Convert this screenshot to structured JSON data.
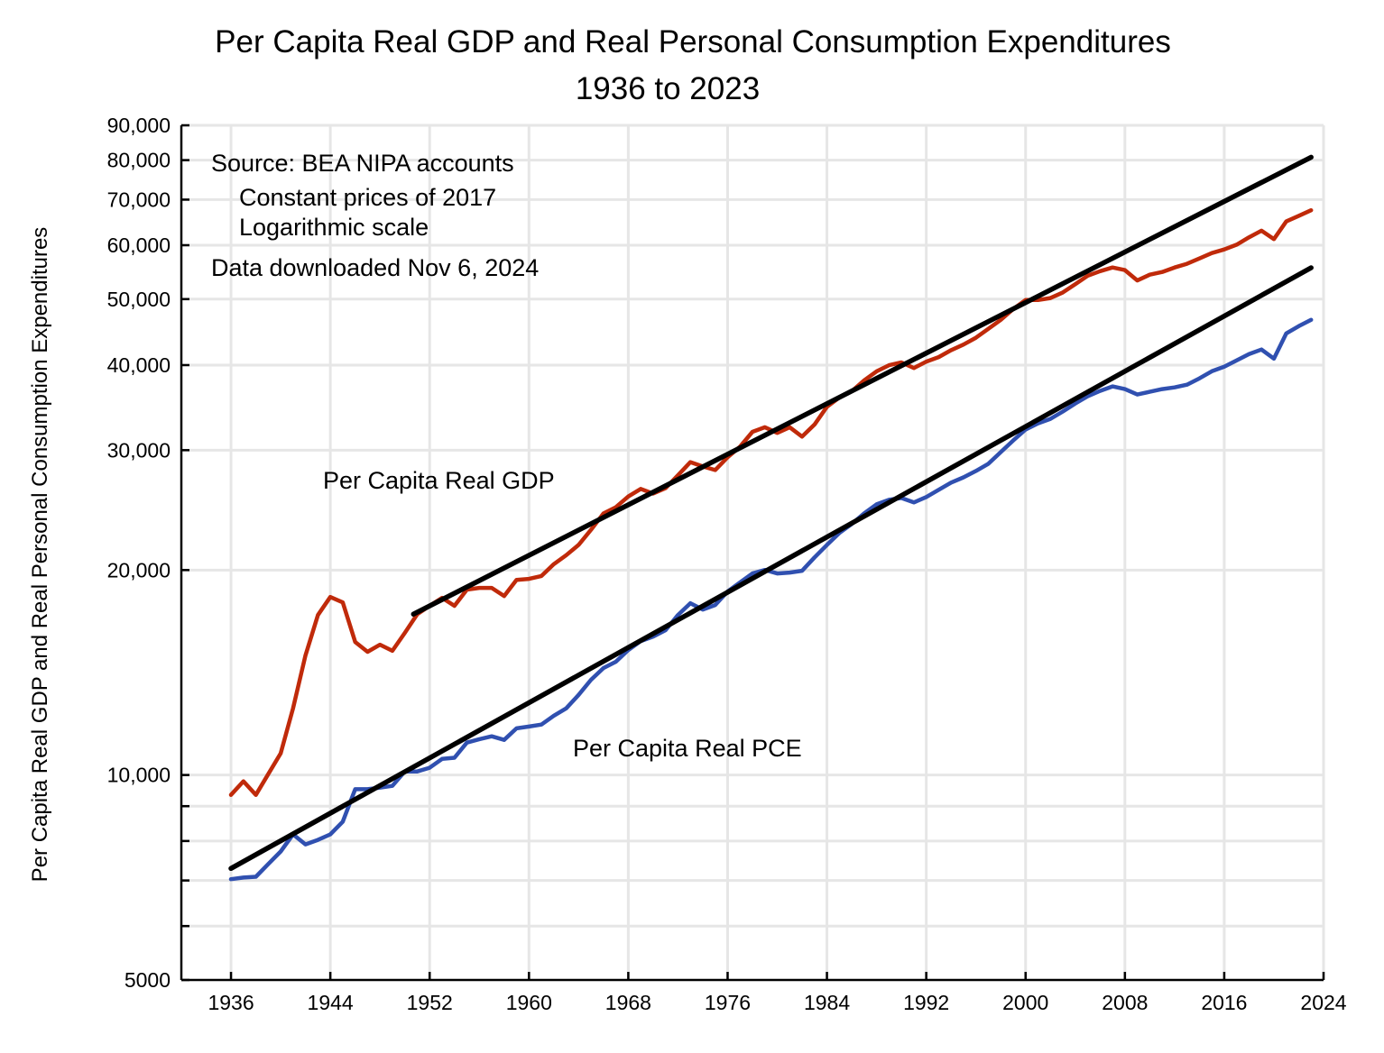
{
  "chart_data": {
    "type": "line",
    "title": "Per Capita Real GDP and Real Personal Consumption Expenditures",
    "subtitle": "1936 to 2023",
    "xlabel": "",
    "ylabel": "Per Capita Real GDP and Real Personal Consumption Expenditures",
    "y_scale": "log",
    "xlim": [
      1932,
      2024
    ],
    "ylim": [
      5000,
      90000
    ],
    "grid": true,
    "x_ticks": [
      1936,
      1944,
      1952,
      1960,
      1968,
      1976,
      1984,
      1992,
      2000,
      2008,
      2016,
      2024
    ],
    "x_tick_labels": [
      "1936",
      "1944",
      "1952",
      "1960",
      "1968",
      "1976",
      "1984",
      "1992",
      "2000",
      "2008",
      "2016",
      "2024"
    ],
    "y_major_ticks": [
      5000,
      10000,
      20000,
      30000,
      40000,
      50000,
      60000,
      70000,
      80000,
      90000
    ],
    "y_tick_labels": [
      "5000",
      "10,000",
      "20,000",
      "30,000",
      "40,000",
      "50,000",
      "60,000",
      "70,000",
      "80,000",
      "90,000"
    ],
    "y_minor_ticks": [
      6000,
      7000,
      8000,
      9000
    ],
    "annotations": [
      {
        "text": "Source:  BEA NIPA accounts",
        "pos": "top-left"
      },
      {
        "text": "Constant prices of 2017",
        "pos": "top-left-indented"
      },
      {
        "text": "Logarithmic scale",
        "pos": "top-left-indented"
      },
      {
        "text": "Data downloaded Nov 6, 2024",
        "pos": "top-left"
      },
      {
        "text": "Per Capita Real GDP",
        "pos": "above-gdp-line"
      },
      {
        "text": "Per Capita Real PCE",
        "pos": "below-pce-line"
      }
    ],
    "x": [
      1936,
      1937,
      1938,
      1939,
      1940,
      1941,
      1942,
      1943,
      1944,
      1945,
      1946,
      1947,
      1948,
      1949,
      1950,
      1951,
      1952,
      1953,
      1954,
      1955,
      1956,
      1957,
      1958,
      1959,
      1960,
      1961,
      1962,
      1963,
      1964,
      1965,
      1966,
      1967,
      1968,
      1969,
      1970,
      1971,
      1972,
      1973,
      1974,
      1975,
      1976,
      1977,
      1978,
      1979,
      1980,
      1981,
      1982,
      1983,
      1984,
      1985,
      1986,
      1987,
      1988,
      1989,
      1990,
      1991,
      1992,
      1993,
      1994,
      1995,
      1996,
      1997,
      1998,
      1999,
      2000,
      2001,
      2002,
      2003,
      2004,
      2005,
      2006,
      2007,
      2008,
      2009,
      2010,
      2011,
      2012,
      2013,
      2014,
      2015,
      2016,
      2017,
      2018,
      2019,
      2020,
      2021,
      2022,
      2023
    ],
    "series": [
      {
        "name": "Per Capita Real GDP",
        "color": "#c02a0a",
        "values": [
          9350,
          9790,
          9350,
          10030,
          10760,
          12530,
          14990,
          17180,
          18260,
          17930,
          15680,
          15170,
          15540,
          15220,
          16170,
          17230,
          17720,
          18210,
          17720,
          18720,
          18830,
          18830,
          18320,
          19350,
          19410,
          19600,
          20400,
          21030,
          21780,
          22920,
          24220,
          24740,
          25650,
          26320,
          25900,
          26390,
          27560,
          28810,
          28390,
          28050,
          29290,
          30350,
          31920,
          32420,
          31800,
          32420,
          31410,
          32720,
          34740,
          35850,
          36620,
          37980,
          39160,
          39990,
          40360,
          39610,
          40480,
          41100,
          42070,
          42870,
          43880,
          45220,
          46610,
          48350,
          49840,
          49840,
          50180,
          51140,
          52600,
          54110,
          54960,
          55650,
          55150,
          53260,
          54300,
          54810,
          55650,
          56340,
          57370,
          58430,
          59150,
          60100,
          61630,
          63020,
          61260,
          65020,
          66270,
          67530
        ]
      },
      {
        "name": "Per Capita Real PCE",
        "color": "#3050b0",
        "values": [
          7030,
          7070,
          7090,
          7400,
          7720,
          8180,
          7910,
          8030,
          8180,
          8540,
          9530,
          9530,
          9580,
          9640,
          10120,
          10120,
          10250,
          10560,
          10600,
          11160,
          11290,
          11400,
          11260,
          11710,
          11780,
          11860,
          12220,
          12530,
          13110,
          13800,
          14360,
          14670,
          15260,
          15730,
          15970,
          16320,
          17180,
          17880,
          17500,
          17770,
          18600,
          19180,
          19770,
          20010,
          19770,
          19830,
          19950,
          20870,
          21780,
          22670,
          23370,
          24230,
          24980,
          25360,
          25520,
          25140,
          25600,
          26240,
          26880,
          27360,
          27960,
          28650,
          29800,
          31000,
          32160,
          32850,
          33350,
          34180,
          35130,
          35990,
          36660,
          37220,
          36880,
          36210,
          36540,
          36880,
          37100,
          37440,
          38240,
          39180,
          39780,
          40640,
          41520,
          42160,
          40890,
          44530,
          45630,
          46610
        ]
      },
      {
        "name": "GDP trend line",
        "color": "#000000",
        "x_range": [
          1950.7,
          2023
        ],
        "values": [
          17230,
          80800
        ]
      },
      {
        "name": "PCE trend line",
        "color": "#000000",
        "x_range": [
          1936,
          2023
        ],
        "values": [
          7290,
          55590
        ]
      }
    ]
  }
}
